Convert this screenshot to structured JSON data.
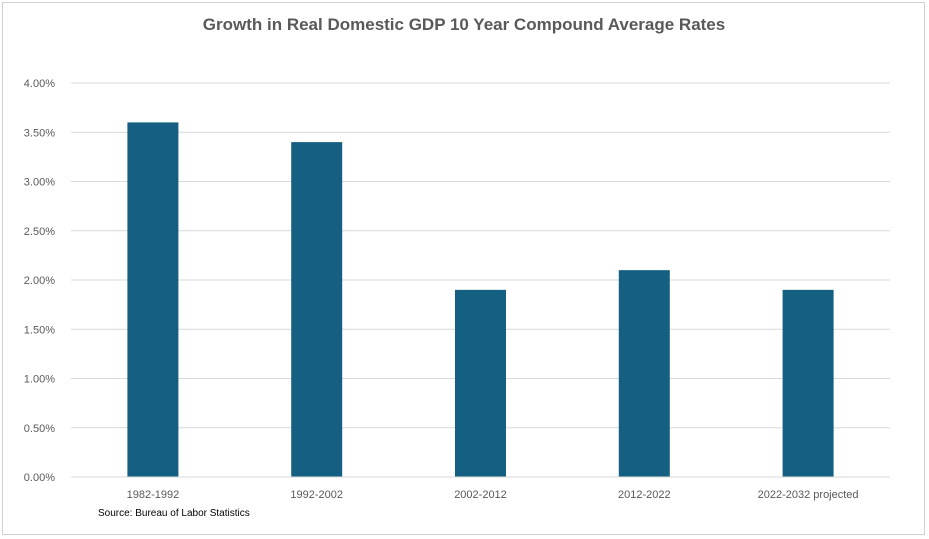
{
  "chart_data": {
    "type": "bar",
    "title": "Growth in Real Domestic GDP  10 Year Compound Average Rates",
    "xlabel": "",
    "ylabel": "",
    "categories": [
      "1982-1992",
      "1992-2002",
      "2002-2012",
      "2012-2022",
      "2022-2032 projected"
    ],
    "values": [
      3.6,
      3.4,
      1.9,
      2.1,
      1.9
    ],
    "ylim": [
      0,
      4
    ],
    "yticks": [
      0,
      0.5,
      1.0,
      1.5,
      2.0,
      2.5,
      3.0,
      3.5,
      4.0
    ],
    "ytick_labels": [
      "0.00%",
      "0.50%",
      "1.00%",
      "1.50%",
      "2.00%",
      "2.50%",
      "3.00%",
      "3.50%",
      "4.00%"
    ],
    "grid": true,
    "legend": "none",
    "bar_color": "#156082",
    "source_note": "Source:  Bureau of Labor Statistics"
  }
}
